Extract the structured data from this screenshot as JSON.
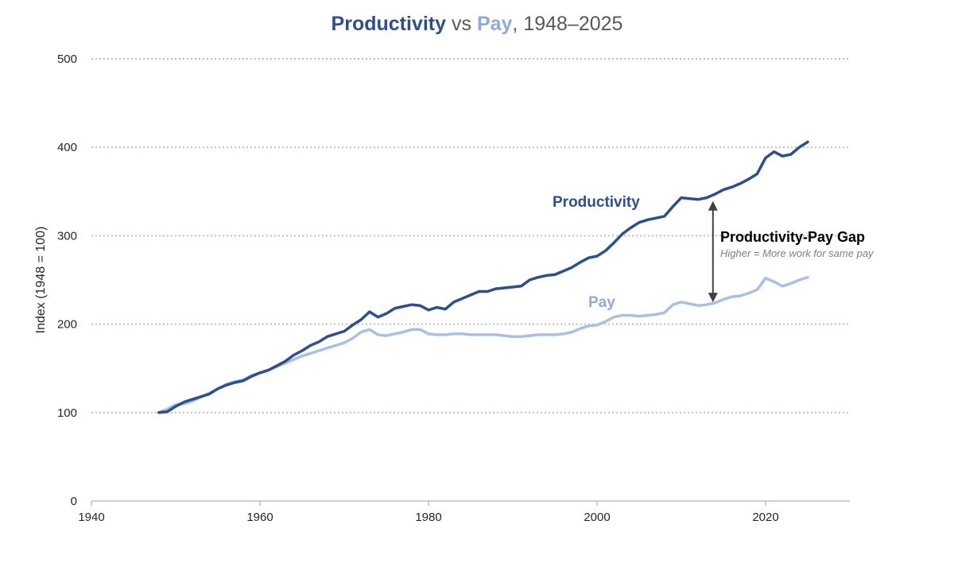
{
  "title": {
    "part1": "Productivity",
    "part2": " vs ",
    "part3": "Pay",
    "part4": ", 1948–2025"
  },
  "chart_data": {
    "type": "line",
    "ylabel": "Index (1948 = 100)",
    "xlabel": "",
    "xlim": [
      1940,
      2030
    ],
    "ylim": [
      0,
      500
    ],
    "x_ticks": [
      1940,
      1960,
      1980,
      2000,
      2020
    ],
    "y_ticks": [
      0,
      100,
      200,
      300,
      400,
      500
    ],
    "grid": "horizontal dotted",
    "colors": {
      "productivity": "#2e4f8f",
      "pay": "#a9c0e6"
    },
    "series": [
      {
        "name": "Productivity",
        "points": [
          [
            1948,
            100
          ],
          [
            1949,
            101
          ],
          [
            1950,
            107
          ],
          [
            1951,
            112
          ],
          [
            1952,
            115
          ],
          [
            1953,
            118
          ],
          [
            1954,
            121
          ],
          [
            1955,
            127
          ],
          [
            1956,
            131
          ],
          [
            1957,
            134
          ],
          [
            1958,
            136
          ],
          [
            1959,
            141
          ],
          [
            1960,
            145
          ],
          [
            1961,
            148
          ],
          [
            1962,
            153
          ],
          [
            1963,
            158
          ],
          [
            1964,
            165
          ],
          [
            1965,
            170
          ],
          [
            1966,
            176
          ],
          [
            1967,
            180
          ],
          [
            1968,
            186
          ],
          [
            1969,
            189
          ],
          [
            1970,
            192
          ],
          [
            1971,
            199
          ],
          [
            1972,
            205
          ],
          [
            1973,
            214
          ],
          [
            1974,
            208
          ],
          [
            1975,
            212
          ],
          [
            1976,
            218
          ],
          [
            1977,
            220
          ],
          [
            1978,
            222
          ],
          [
            1979,
            221
          ],
          [
            1980,
            216
          ],
          [
            1981,
            219
          ],
          [
            1982,
            217
          ],
          [
            1983,
            225
          ],
          [
            1984,
            229
          ],
          [
            1985,
            233
          ],
          [
            1986,
            237
          ],
          [
            1987,
            237
          ],
          [
            1988,
            240
          ],
          [
            1989,
            241
          ],
          [
            1990,
            242
          ],
          [
            1991,
            243
          ],
          [
            1992,
            250
          ],
          [
            1993,
            253
          ],
          [
            1994,
            255
          ],
          [
            1995,
            256
          ],
          [
            1996,
            260
          ],
          [
            1997,
            264
          ],
          [
            1998,
            270
          ],
          [
            1999,
            275
          ],
          [
            2000,
            277
          ],
          [
            2001,
            283
          ],
          [
            2002,
            292
          ],
          [
            2003,
            302
          ],
          [
            2004,
            309
          ],
          [
            2005,
            315
          ],
          [
            2006,
            318
          ],
          [
            2007,
            320
          ],
          [
            2008,
            322
          ],
          [
            2009,
            333
          ],
          [
            2010,
            343
          ],
          [
            2011,
            342
          ],
          [
            2012,
            341
          ],
          [
            2013,
            343
          ],
          [
            2014,
            347
          ],
          [
            2015,
            352
          ],
          [
            2016,
            355
          ],
          [
            2017,
            359
          ],
          [
            2018,
            364
          ],
          [
            2019,
            370
          ],
          [
            2020,
            388
          ],
          [
            2021,
            395
          ],
          [
            2022,
            390
          ],
          [
            2023,
            392
          ],
          [
            2024,
            400
          ],
          [
            2025,
            406
          ]
        ]
      },
      {
        "name": "Pay",
        "points": [
          [
            1948,
            100
          ],
          [
            1949,
            104
          ],
          [
            1950,
            109
          ],
          [
            1951,
            110
          ],
          [
            1952,
            113
          ],
          [
            1953,
            118
          ],
          [
            1954,
            122
          ],
          [
            1955,
            127
          ],
          [
            1956,
            132
          ],
          [
            1957,
            135
          ],
          [
            1958,
            137
          ],
          [
            1959,
            142
          ],
          [
            1960,
            145
          ],
          [
            1961,
            148
          ],
          [
            1962,
            152
          ],
          [
            1963,
            156
          ],
          [
            1964,
            160
          ],
          [
            1965,
            164
          ],
          [
            1966,
            167
          ],
          [
            1967,
            170
          ],
          [
            1968,
            173
          ],
          [
            1969,
            176
          ],
          [
            1970,
            179
          ],
          [
            1971,
            184
          ],
          [
            1972,
            191
          ],
          [
            1973,
            194
          ],
          [
            1974,
            188
          ],
          [
            1975,
            187
          ],
          [
            1976,
            189
          ],
          [
            1977,
            191
          ],
          [
            1978,
            194
          ],
          [
            1979,
            194
          ],
          [
            1980,
            189
          ],
          [
            1981,
            188
          ],
          [
            1982,
            188
          ],
          [
            1983,
            189
          ],
          [
            1984,
            189
          ],
          [
            1985,
            188
          ],
          [
            1986,
            188
          ],
          [
            1987,
            188
          ],
          [
            1988,
            188
          ],
          [
            1989,
            187
          ],
          [
            1990,
            186
          ],
          [
            1991,
            186
          ],
          [
            1992,
            187
          ],
          [
            1993,
            188
          ],
          [
            1994,
            188
          ],
          [
            1995,
            188
          ],
          [
            1996,
            189
          ],
          [
            1997,
            191
          ],
          [
            1998,
            195
          ],
          [
            1999,
            198
          ],
          [
            2000,
            199
          ],
          [
            2001,
            203
          ],
          [
            2002,
            208
          ],
          [
            2003,
            210
          ],
          [
            2004,
            210
          ],
          [
            2005,
            209
          ],
          [
            2006,
            210
          ],
          [
            2007,
            211
          ],
          [
            2008,
            213
          ],
          [
            2009,
            222
          ],
          [
            2010,
            225
          ],
          [
            2011,
            223
          ],
          [
            2012,
            221
          ],
          [
            2013,
            222
          ],
          [
            2014,
            224
          ],
          [
            2015,
            228
          ],
          [
            2016,
            231
          ],
          [
            2017,
            232
          ],
          [
            2018,
            235
          ],
          [
            2019,
            239
          ],
          [
            2020,
            252
          ],
          [
            2021,
            248
          ],
          [
            2022,
            243
          ],
          [
            2023,
            246
          ],
          [
            2024,
            250
          ],
          [
            2025,
            253
          ]
        ]
      }
    ],
    "annotations": {
      "productivity_label": "Productivity",
      "pay_label": "Pay",
      "gap_title": "Productivity-Pay Gap",
      "gap_subtitle": "Higher = More work for same pay",
      "gap_arrow_year": 2013,
      "gap_arrow_range": [
        222,
        342
      ]
    }
  }
}
